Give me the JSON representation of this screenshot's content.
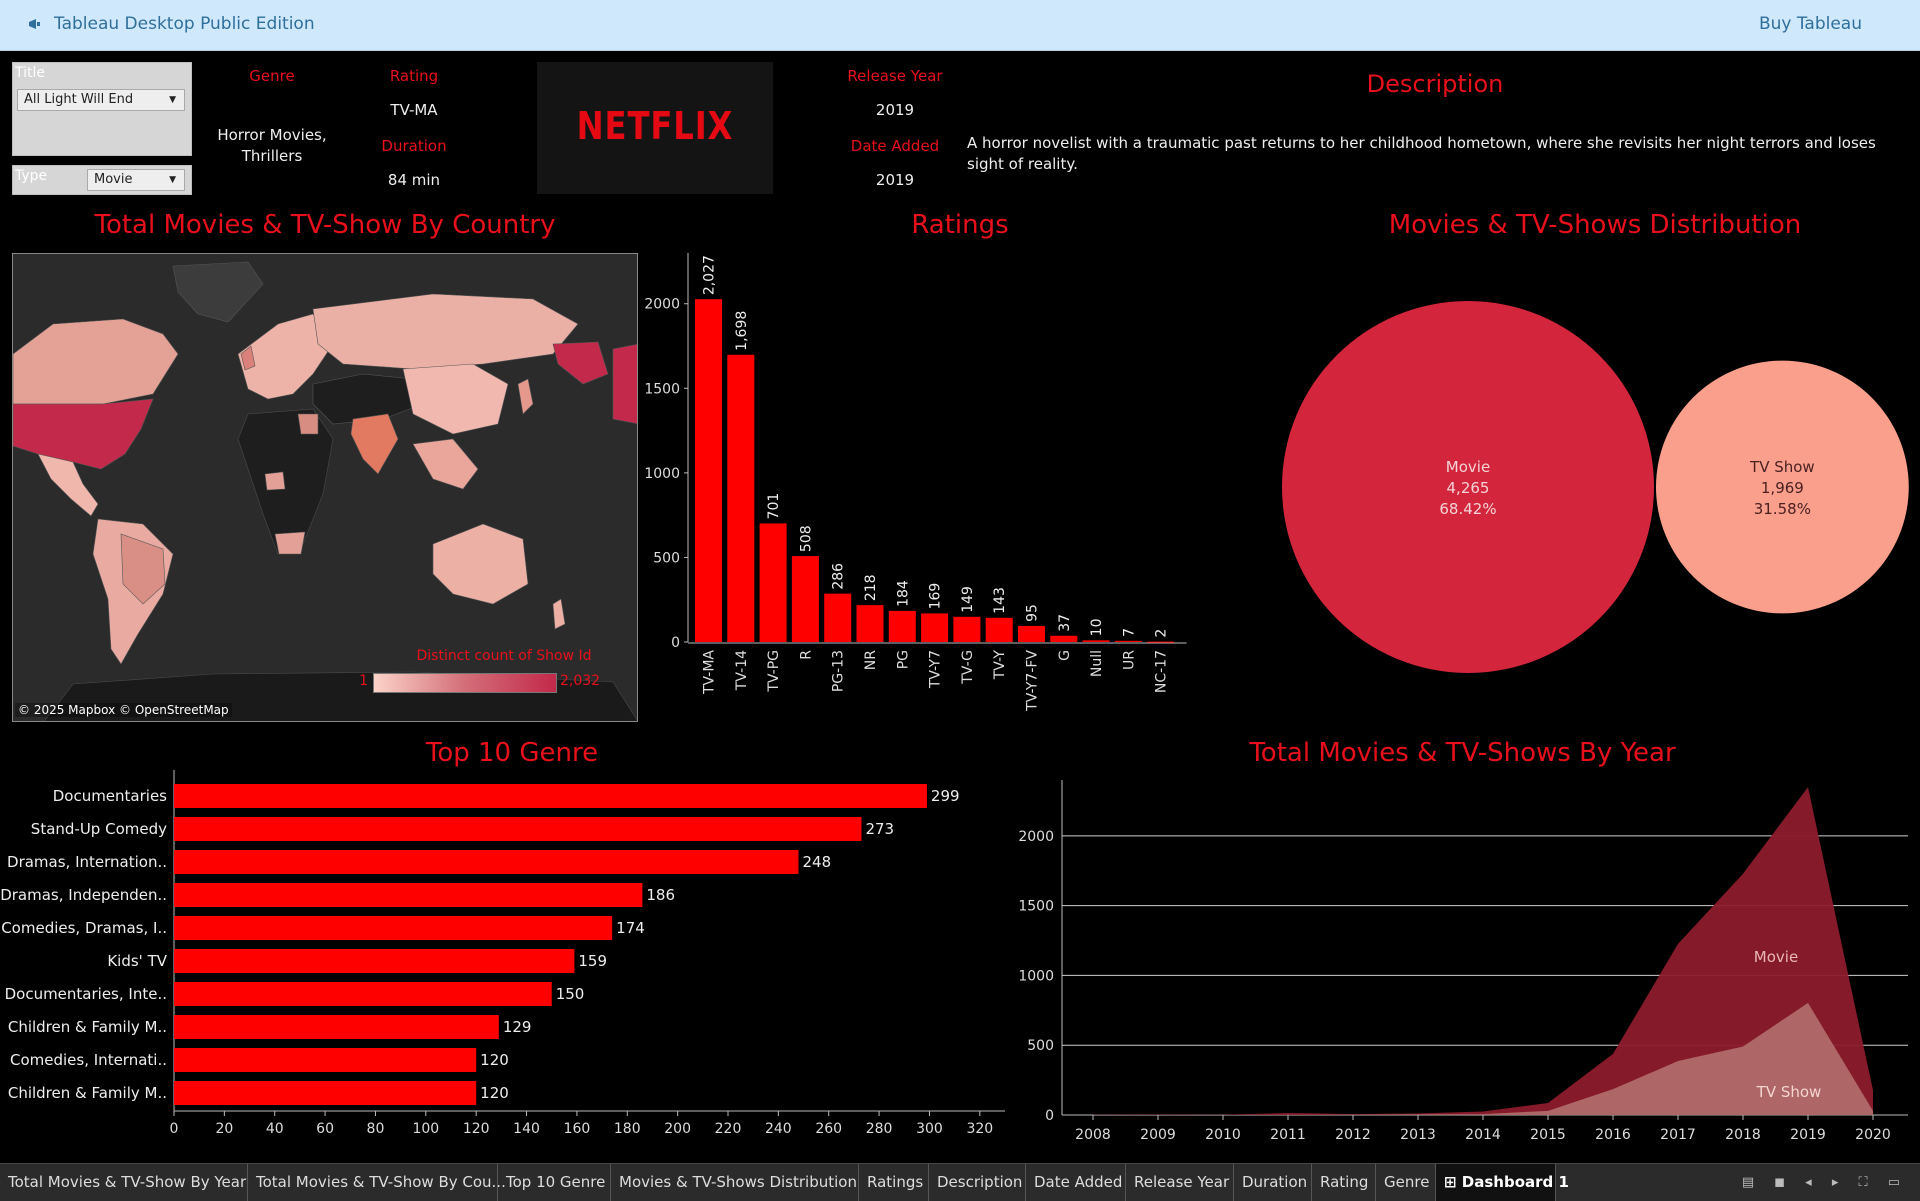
{
  "app": {
    "title": "Tableau Desktop Public Edition",
    "buy_label": "Buy Tableau",
    "logo_icon": "tableau-logo-icon"
  },
  "filters": {
    "title_label": "Title",
    "title_value": "All Light Will End",
    "type_label": "Type",
    "type_value": "Movie"
  },
  "details": {
    "genre_label": "Genre",
    "genre_value_line1": "Horror Movies,",
    "genre_value_line2": "Thrillers",
    "rating_label": "Rating",
    "rating_value": "TV-MA",
    "duration_label": "Duration",
    "duration_value": "84 min",
    "netflix_logo": "NETFLIX",
    "release_year_label": "Release Year",
    "release_year_value": "2019",
    "date_added_label": "Date Added",
    "date_added_value": "2019",
    "description_label": "Description",
    "description_text": "A horror novelist with a traumatic past returns to her childhood hometown, where she revisits her night terrors and loses sight of reality."
  },
  "map": {
    "title": "Total Movies & TV-Show By Country",
    "legend_title": "Distinct count of Show Id",
    "legend_min": "1",
    "legend_max": "2,032",
    "attribution": "© 2025 Mapbox © OpenStreetMap",
    "colors": {
      "low": "#f6c2b8",
      "high": "#c2294a",
      "land": "#3a3a3a",
      "water": "#2a2a2a"
    }
  },
  "titles": {
    "ratings": "Ratings",
    "distribution": "Movies & TV-Shows Distribution",
    "genre": "Top 10 Genre",
    "year": "Total Movies & TV-Shows By Year"
  },
  "colors": {
    "accent": "#ff0000",
    "title_red": "#e8101a",
    "movie": "#d3263d",
    "tvshow": "#fb9f8d",
    "movie_area": "#8c1b2c",
    "tvshow_area": "#b06a6a"
  },
  "chart_data": [
    {
      "type": "bar",
      "title": "Ratings",
      "categories": [
        "TV-MA",
        "TV-14",
        "TV-PG",
        "R",
        "PG-13",
        "NR",
        "PG",
        "TV-Y7",
        "TV-G",
        "TV-Y",
        "TV-Y7-FV",
        "G",
        "Null",
        "UR",
        "NC-17"
      ],
      "values": [
        2027,
        1698,
        701,
        508,
        286,
        218,
        184,
        169,
        149,
        143,
        95,
        37,
        10,
        7,
        2
      ],
      "value_labels": [
        "2,027",
        "1,698",
        "701",
        "508",
        "286",
        "218",
        "184",
        "169",
        "149",
        "143",
        "95",
        "37",
        "10",
        "7",
        "2"
      ],
      "ylim": [
        0,
        2300
      ],
      "yticks": [
        0,
        500,
        1000,
        1500,
        2000
      ]
    },
    {
      "type": "pie",
      "title": "Movies & TV-Shows Distribution",
      "categories": [
        "Movie",
        "TV Show"
      ],
      "values": [
        4265,
        1969
      ],
      "value_labels": [
        "4,265",
        "1,969"
      ],
      "percents": [
        "68.42%",
        "31.58%"
      ]
    },
    {
      "type": "bar",
      "title": "Top 10 Genre",
      "orientation": "horizontal",
      "categories": [
        "Documentaries",
        "Stand-Up Comedy",
        "Dramas, Internation..",
        "Dramas, Independen..",
        "Comedies, Dramas, I..",
        "Kids' TV",
        "Documentaries, Inte..",
        "Children & Family M..",
        "Comedies, Internati..",
        "Children & Family M.."
      ],
      "values": [
        299,
        273,
        248,
        186,
        174,
        159,
        150,
        129,
        120,
        120
      ],
      "xlim": [
        0,
        330
      ],
      "xticks": [
        0,
        20,
        40,
        60,
        80,
        100,
        120,
        140,
        160,
        180,
        200,
        220,
        240,
        260,
        280,
        300,
        320
      ]
    },
    {
      "type": "area",
      "title": "Total Movies & TV-Shows By Year",
      "x": [
        2008,
        2009,
        2010,
        2011,
        2012,
        2013,
        2014,
        2015,
        2016,
        2017,
        2018,
        2019,
        2020
      ],
      "series": [
        {
          "name": "Movie",
          "values": [
            1,
            2,
            1,
            13,
            3,
            6,
            19,
            56,
            253,
            839,
            1237,
            1546,
            147
          ]
        },
        {
          "name": "TV Show",
          "values": [
            1,
            1,
            1,
            1,
            3,
            5,
            6,
            30,
            185,
            387,
            491,
            803,
            30
          ]
        }
      ],
      "ylim": [
        0,
        2400
      ],
      "yticks": [
        0,
        500,
        1000,
        1500,
        2000
      ],
      "stacked": true
    }
  ],
  "tabs": [
    {
      "label": "Total Movies & TV-Show By Year"
    },
    {
      "label": "Total Movies & TV-Show By Cou..."
    },
    {
      "label": "Top 10 Genre"
    },
    {
      "label": "Movies & TV-Shows Distribution"
    },
    {
      "label": "Ratings"
    },
    {
      "label": "Description"
    },
    {
      "label": "Date Added"
    },
    {
      "label": "Release Year"
    },
    {
      "label": "Duration"
    },
    {
      "label": "Rating"
    },
    {
      "label": "Genre"
    },
    {
      "label": "Dashboard 1",
      "active": true
    }
  ]
}
